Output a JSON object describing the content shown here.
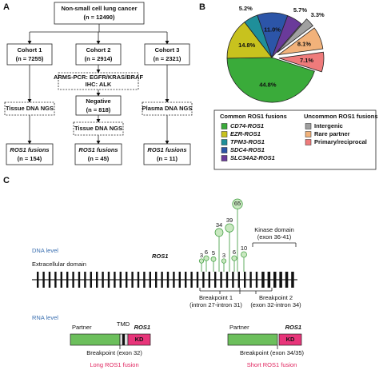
{
  "panel_labels": [
    "A",
    "B",
    "C"
  ],
  "flowchart": {
    "root": {
      "title": "Non-small cell lung cancer",
      "n": "(n = 12490)"
    },
    "cohorts": [
      {
        "title": "Cohort 1",
        "n": "(n = 7255)",
        "test": "Tissue DNA NGS",
        "result": "ROS1 fusions",
        "result_n": "(n = 154)"
      },
      {
        "title": "Cohort 2",
        "n": "(n = 2914)",
        "screen": [
          "ARMS-PCR: EGFR/KRAS/BRAF",
          "IHC: ALK"
        ],
        "negative": {
          "title": "Negative",
          "n": "(n = 818)"
        },
        "test": "Tissue DNA NGS",
        "result": "ROS1 fusions",
        "result_n": "(n = 45)"
      },
      {
        "title": "Cohort 3",
        "n": "(n = 2321)",
        "test": "Plasma DNA NGS",
        "result": "ROS1 fusions",
        "result_n": "(n = 11)"
      }
    ]
  },
  "chart_data": {
    "type": "pie",
    "groups": [
      {
        "title": "Common ROS1 fusions",
        "categories": [
          "CD74-ROS1",
          "EZR-ROS1",
          "TPM3-ROS1",
          "SDC4-ROS1",
          "SLC34A2-ROS1"
        ],
        "values": [
          44.8,
          14.8,
          5.2,
          11.0,
          5.7
        ],
        "value_labels": [
          "44.8%",
          "14.8%",
          "5.2%",
          "11.0%",
          "5.7%"
        ],
        "colors": [
          "#3aab3a",
          "#c8c21e",
          "#1f8f9a",
          "#2c55a8",
          "#6a3a9a"
        ],
        "exploded": false
      },
      {
        "title": "Uncommon ROS1 fusions",
        "categories": [
          "Intergenic",
          "Rare partner",
          "Primary/reciprocal"
        ],
        "values": [
          3.3,
          8.1,
          7.1
        ],
        "value_labels": [
          "3.3%",
          "8.1%",
          "7.1%"
        ],
        "colors": [
          "#a0a0a0",
          "#f2b27a",
          "#ef7b7b"
        ],
        "exploded": true
      }
    ]
  },
  "gene": {
    "dna_level": "DNA level",
    "domain": "Extracellular domain",
    "name": "ROS1",
    "kinase": [
      "Kinase domain",
      "(exon 36-41)"
    ],
    "lollipop_counts": [
      3,
      6,
      5,
      34,
      3,
      39,
      6,
      65,
      10
    ],
    "breakpoints": [
      {
        "title": "Breakpoint 1",
        "range": "(intron 27-intron 31)"
      },
      {
        "title": "Breakpoint 2",
        "range": "(exon 32-intron 34)"
      }
    ]
  },
  "rna": {
    "level": "RNA level",
    "long": {
      "partner": "Partner",
      "tmd": "TMD",
      "gene": "ROS1",
      "kd": "KD",
      "breakpoint": "Breakpoint (exon 32)",
      "title": "Long ROS1 fusion"
    },
    "short": {
      "partner": "Partner",
      "gene": "ROS1",
      "kd": "KD",
      "breakpoint": "Breakpoint (exon 34/35)",
      "title": "Short ROS1 fusion"
    }
  }
}
